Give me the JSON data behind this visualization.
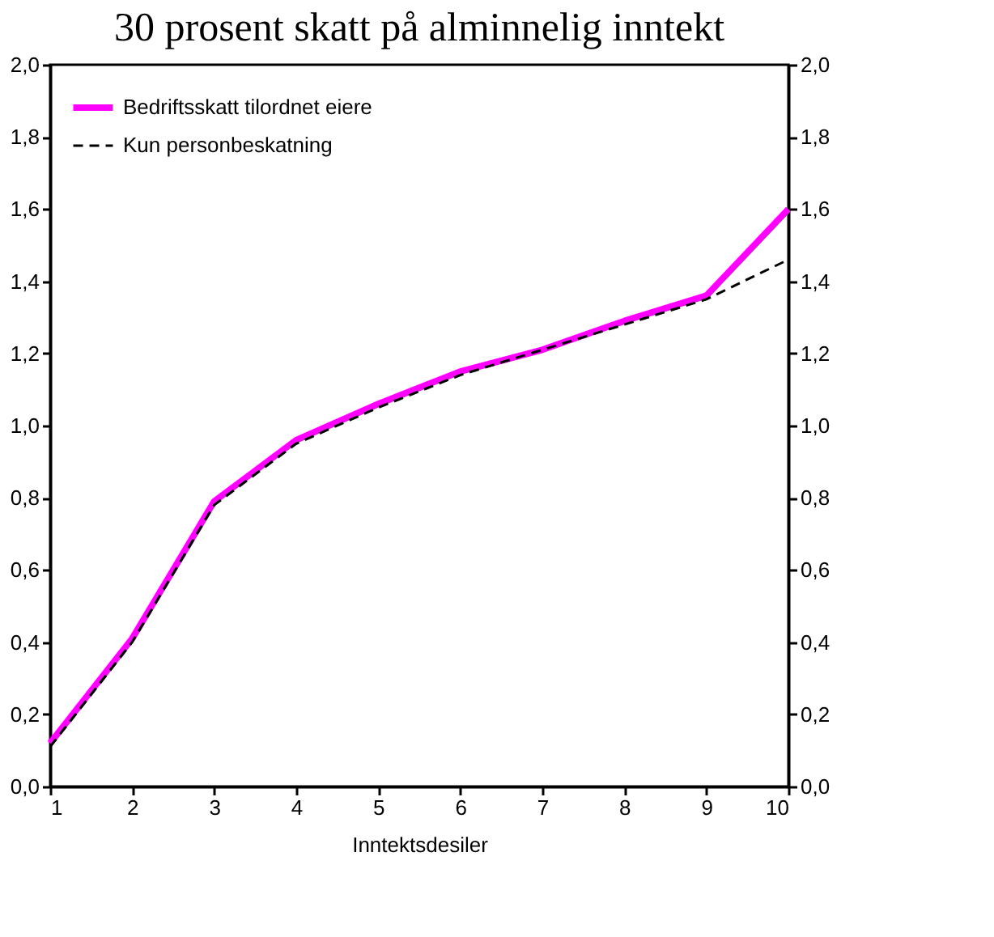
{
  "chart_data": {
    "type": "line",
    "title": "30 prosent skatt på alminnelig inntekt",
    "xlabel": "Inntektsdesiler",
    "x": [
      1,
      2,
      3,
      4,
      5,
      6,
      7,
      8,
      9,
      10
    ],
    "series": [
      {
        "name": "Bedriftsskatt tilordnet eiere",
        "color": "#ff00ff",
        "line_style": "solid",
        "values": [
          0.12,
          0.41,
          0.79,
          0.96,
          1.06,
          1.15,
          1.21,
          1.29,
          1.36,
          1.6
        ]
      },
      {
        "name": "Kun personbeskatning",
        "color": "#000000",
        "line_style": "dashed",
        "values": [
          0.11,
          0.4,
          0.78,
          0.95,
          1.05,
          1.14,
          1.21,
          1.28,
          1.35,
          1.46
        ]
      }
    ],
    "xlim": [
      1,
      10
    ],
    "xticks": [
      1,
      2,
      3,
      4,
      5,
      6,
      7,
      8,
      9,
      10
    ],
    "ylim": [
      0,
      2
    ],
    "yticks": [
      {
        "value": 0,
        "label": "0,0"
      },
      {
        "value": 0.2,
        "label": "0,2"
      },
      {
        "value": 0.4,
        "label": "0,4"
      },
      {
        "value": 0.6,
        "label": "0,6"
      },
      {
        "value": 0.8,
        "label": "0,8"
      },
      {
        "value": 1.0,
        "label": "1,0"
      },
      {
        "value": 1.2,
        "label": "1,2"
      },
      {
        "value": 1.4,
        "label": "1,4"
      },
      {
        "value": 1.6,
        "label": "1,6"
      },
      {
        "value": 1.8,
        "label": "1,8"
      },
      {
        "value": 2.0,
        "label": "2,0"
      }
    ],
    "y2lim": [
      0,
      2
    ],
    "y2ticks": [
      {
        "value": 0,
        "label": "0,0"
      },
      {
        "value": 0.2,
        "label": "0,2"
      },
      {
        "value": 0.4,
        "label": "0,4"
      },
      {
        "value": 0.6,
        "label": "0,6"
      },
      {
        "value": 0.8,
        "label": "0,8"
      },
      {
        "value": 1.0,
        "label": "1,0"
      },
      {
        "value": 1.2,
        "label": "1,2"
      },
      {
        "value": 1.4,
        "label": "1,4"
      },
      {
        "value": 1.6,
        "label": "1,6"
      },
      {
        "value": 1.8,
        "label": "1,8"
      },
      {
        "value": 2.0,
        "label": "2,0"
      }
    ],
    "legend": "top left",
    "grid": false
  }
}
